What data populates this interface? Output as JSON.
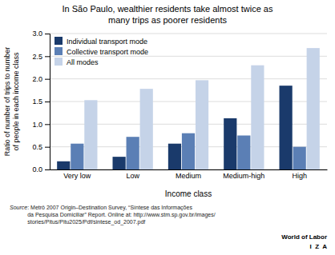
{
  "chart_data": {
    "type": "bar",
    "title": "In São Paulo, wealthier residents take almost twice as\nmany trips as poorer residents",
    "xlabel": "Income class",
    "ylabel": "Ratio of number of trips to number\nof people in each income class",
    "categories": [
      "Very low",
      "Low",
      "Medium",
      "Medium-high",
      "High"
    ],
    "series": [
      {
        "name": "Individual transport mode",
        "color": "#1a3a6b",
        "values": [
          0.18,
          0.28,
          0.57,
          1.13,
          1.85
        ]
      },
      {
        "name": "Collective transport mode",
        "color": "#5b7fb5",
        "values": [
          0.57,
          0.72,
          0.8,
          0.75,
          0.5
        ]
      },
      {
        "name": "All modes",
        "color": "#c5d3e8",
        "values": [
          1.53,
          1.78,
          1.97,
          2.3,
          2.68
        ]
      }
    ],
    "ylim": [
      0,
      3
    ],
    "yticks": [
      {
        "value": 0,
        "label": "0.0"
      },
      0.5,
      {
        "value": 1,
        "label": "1.0"
      },
      1.5,
      {
        "value": 2,
        "label": "2.0"
      },
      2.5,
      {
        "value": 3,
        "label": "3.0"
      }
    ],
    "grid": true,
    "legend": "upper left",
    "annotations": [
      "Source",
      ": Metrô 2007 Origin–Destination Survey, “Síntese das Informações\nda Pesquisa Domiciliar” Report. Online at: http://www.stm.sp.gov.br/images/\nstories/Pitus/Pitu2025/Pdf/sintese_od_2007.pdf",
      "I  Z  A",
      "World of Labor"
    ]
  }
}
